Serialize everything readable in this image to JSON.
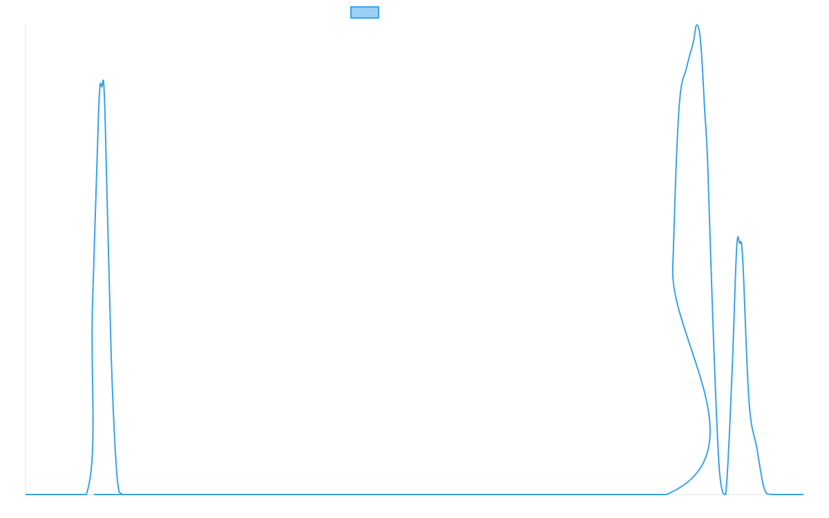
{
  "chart_data": {
    "type": "line",
    "title": "",
    "xlabel": "",
    "ylabel": "",
    "xlim": [
      0,
      100
    ],
    "ylim": [
      0,
      1
    ],
    "grid": false,
    "legend": {
      "position": "top-center",
      "entries": [
        {
          "label": ""
        }
      ]
    },
    "colors": {
      "line": "#36A2EB",
      "legend_fill": "#9AD0F5",
      "axis": "#E5E5E5"
    },
    "x": [
      0,
      7.8,
      8.6,
      9.4,
      9.8,
      10.2,
      11.0,
      11.8,
      12.5,
      15.0,
      82.4,
      83.2,
      84.0,
      85.0,
      85.8,
      86.3,
      86.8,
      87.3,
      87.7,
      88.4,
      89.2,
      90.0,
      90.8,
      91.4,
      91.8,
      92.2,
      93.0,
      94.0,
      95.0,
      96.0,
      100
    ],
    "series": [
      {
        "values": [
          0,
          0,
          0.4,
          0.82,
          0.868,
          0.82,
          0.3,
          0.03,
          0,
          0,
          0,
          0.48,
          0.82,
          0.91,
          0.96,
          1.0,
          0.96,
          0.82,
          0.7,
          0.35,
          0.05,
          0,
          0.25,
          0.52,
          0.535,
          0.5,
          0.2,
          0.1,
          0.01,
          0,
          0
        ]
      }
    ]
  }
}
